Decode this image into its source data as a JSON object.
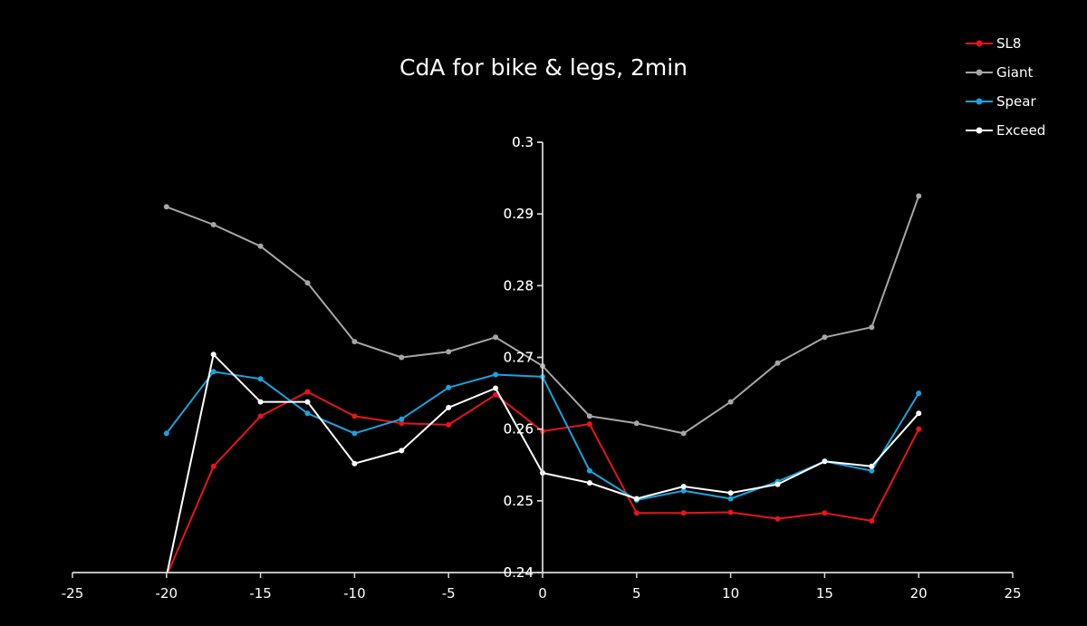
{
  "chart_data": {
    "type": "line",
    "title": "CdA for bike & legs, 2min",
    "xlabel": "",
    "ylabel": "",
    "xlim": [
      -25,
      25
    ],
    "ylim": [
      0.24,
      0.3
    ],
    "x_ticks": [
      -25,
      -20,
      -15,
      -10,
      -5,
      0,
      5,
      10,
      15,
      20,
      25
    ],
    "x_tick_labels": [
      "-25",
      "-20",
      "-15",
      "-10",
      "-5",
      "0",
      "5",
      "10",
      "15",
      "20",
      "25"
    ],
    "y_ticks": [
      0.24,
      0.25,
      0.26,
      0.27,
      0.28,
      0.29,
      0.3
    ],
    "y_tick_labels": [
      "0.24",
      "0.25",
      "0.26",
      "0.27",
      "0.28",
      "0.29",
      "0.3"
    ],
    "grid": false,
    "legend_position": "top-right",
    "x": [
      -20,
      -17.5,
      -15,
      -12.5,
      -10,
      -7.5,
      -5,
      -2.5,
      0,
      2.5,
      5,
      7.5,
      10,
      12.5,
      15,
      17.5,
      20
    ],
    "series": [
      {
        "name": "SL8",
        "color": "#e8141c",
        "values": [
          0.2395,
          0.2548,
          0.2618,
          0.2652,
          0.2618,
          0.2608,
          0.2606,
          0.2648,
          0.2597,
          0.2607,
          0.2483,
          0.2483,
          0.2484,
          0.2475,
          0.2483,
          0.2472,
          0.26
        ]
      },
      {
        "name": "Giant",
        "color": "#a6a6a6",
        "values": [
          0.291,
          0.2885,
          0.2855,
          0.2804,
          0.2722,
          0.27,
          0.2708,
          0.2728,
          0.2688,
          0.2618,
          0.2608,
          0.2594,
          0.2638,
          0.2692,
          0.2728,
          0.2742,
          0.2925
        ]
      },
      {
        "name": "Spear",
        "color": "#1aa3dd",
        "values": [
          0.2594,
          0.268,
          0.267,
          0.2622,
          0.2594,
          0.2614,
          0.2658,
          0.2676,
          0.2673,
          0.2542,
          0.2501,
          0.2514,
          0.2503,
          0.2527,
          0.2555,
          0.2542,
          0.265
        ]
      },
      {
        "name": "Exceed",
        "color": "#ffffff",
        "values": [
          0.2395,
          0.2704,
          0.2638,
          0.2638,
          0.2552,
          0.257,
          0.263,
          0.2657,
          0.2539,
          0.2525,
          0.2503,
          0.252,
          0.2511,
          0.2523,
          0.2555,
          0.2548,
          0.2622
        ]
      }
    ]
  }
}
